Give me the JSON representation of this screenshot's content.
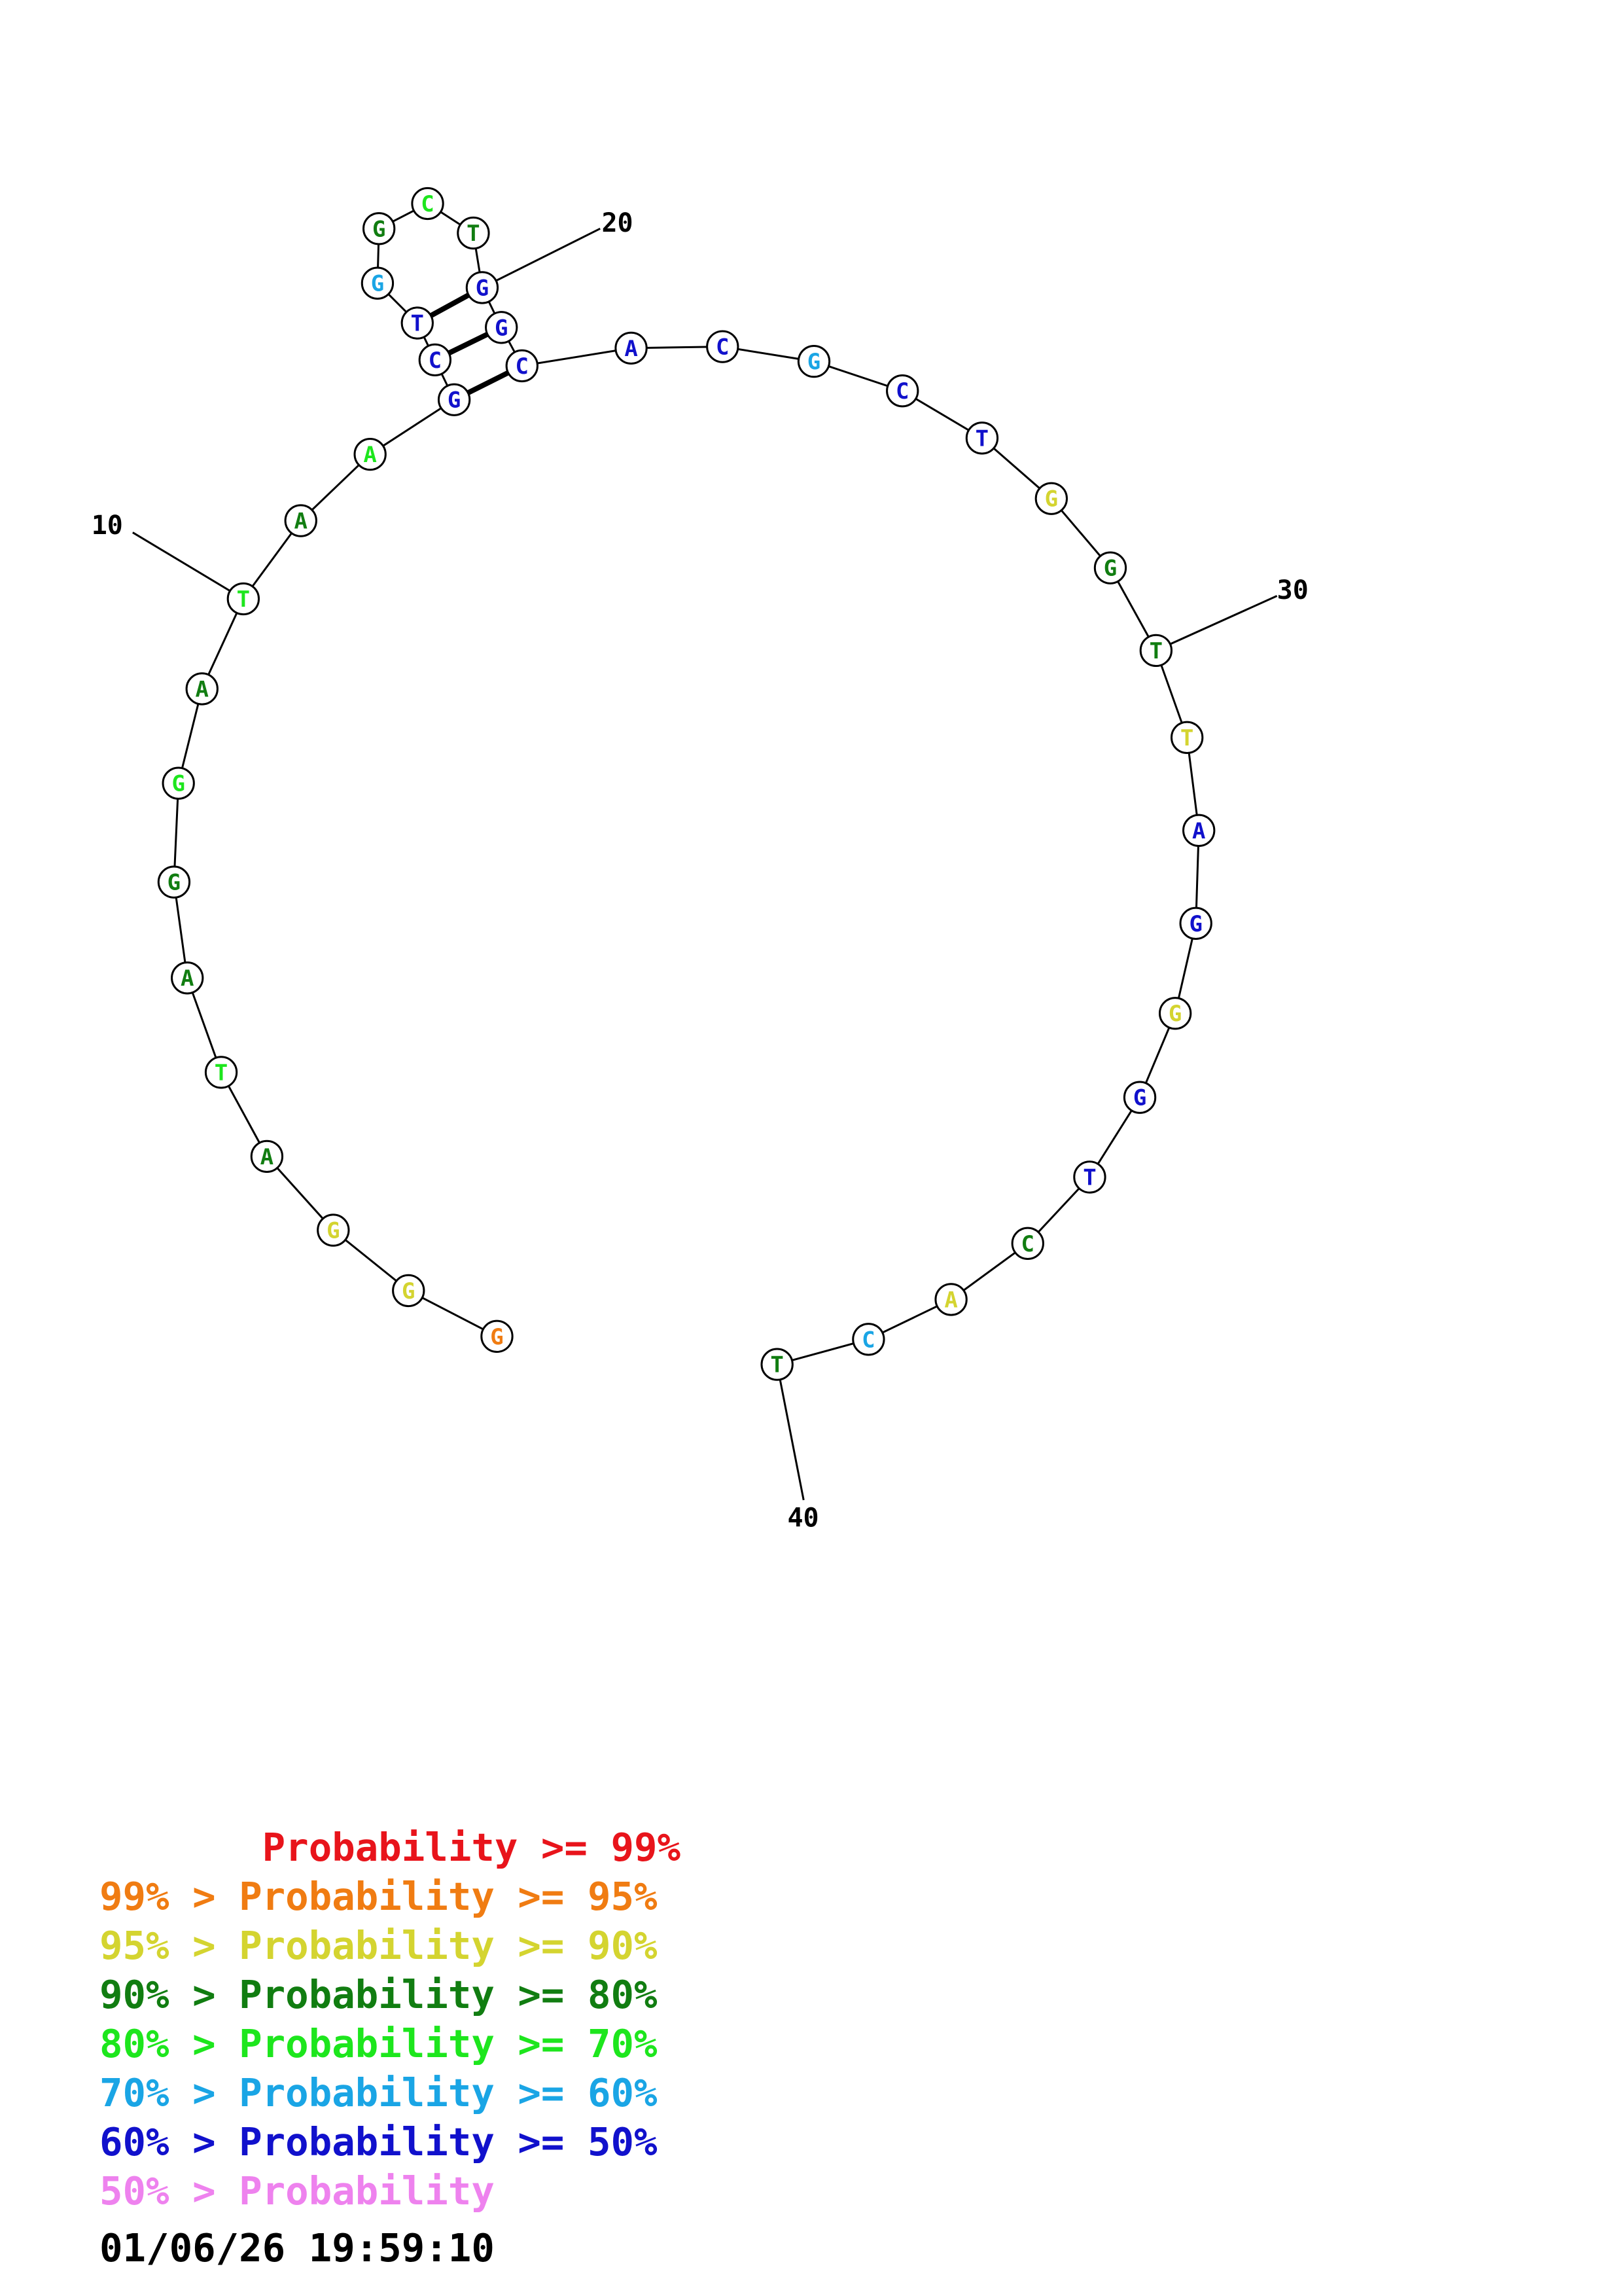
{
  "structure": {
    "sequence": [
      "G",
      "G",
      "G",
      "A",
      "T",
      "A",
      "G",
      "G",
      "A",
      "T",
      "A",
      "A",
      "G",
      "C",
      "T",
      "G",
      "G",
      "C",
      "T",
      "G",
      "G",
      "C",
      "A",
      "C",
      "G",
      "C",
      "T",
      "G",
      "G",
      "T",
      "T",
      "A",
      "G",
      "G",
      "G",
      "T",
      "C",
      "A",
      "C",
      "T"
    ],
    "probability_class": [
      1,
      2,
      2,
      3,
      4,
      3,
      3,
      4,
      3,
      4,
      3,
      4,
      6,
      6,
      6,
      5,
      3,
      4,
      3,
      6,
      6,
      6,
      6,
      6,
      5,
      6,
      6,
      2,
      3,
      3,
      2,
      6,
      6,
      2,
      6,
      6,
      3,
      2,
      5,
      3
    ],
    "pairs": [
      [
        13,
        22
      ],
      [
        14,
        21
      ],
      [
        15,
        20
      ]
    ],
    "tick_labels": [
      {
        "index": 10,
        "text": "10"
      },
      {
        "index": 20,
        "text": "20"
      },
      {
        "index": 30,
        "text": "30"
      },
      {
        "index": 40,
        "text": "40"
      }
    ]
  },
  "legend": {
    "colors": [
      "#e8141b",
      "#f07c12",
      "#d4d430",
      "#117d11",
      "#1de61d",
      "#1aa5e5",
      "#1111cc",
      "#ee82ee"
    ],
    "rows": [
      {
        "text": "       Probability >= 99%",
        "color_index": 0
      },
      {
        "text": "99% > Probability >= 95%",
        "color_index": 1
      },
      {
        "text": "95% > Probability >= 90%",
        "color_index": 2
      },
      {
        "text": "90% > Probability >= 80%",
        "color_index": 3
      },
      {
        "text": "80% > Probability >= 70%",
        "color_index": 4
      },
      {
        "text": "70% > Probability >= 60%",
        "color_index": 5
      },
      {
        "text": "60% > Probability >= 50%",
        "color_index": 6
      },
      {
        "text": "50% > Probability",
        "color_index": 7
      }
    ]
  },
  "timestamp": "01/06/26 19:59:10"
}
